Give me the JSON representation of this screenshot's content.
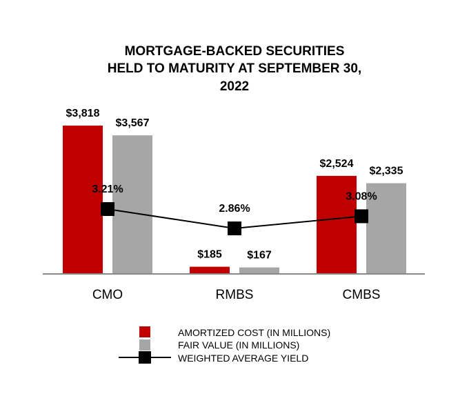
{
  "chart_data": {
    "type": "bar",
    "title_lines": [
      "MORTGAGE-BACKED SECURITIES",
      "HELD TO MATURITY AT SEPTEMBER 30,",
      "2022"
    ],
    "categories": [
      "CMO",
      "RMBS",
      "CMBS"
    ],
    "series": [
      {
        "name": "AMORTIZED COST (IN MILLIONS)",
        "values": [
          3818,
          185,
          2524
        ],
        "labels": [
          "$3,818",
          "$185",
          "$2,524"
        ],
        "color": "#c00000"
      },
      {
        "name": "FAIR VALUE (IN MILLIONS)",
        "values": [
          3567,
          167,
          2335
        ],
        "labels": [
          "$3,567",
          "$167",
          "$2,335"
        ],
        "color": "#a6a6a6"
      }
    ],
    "line_series": {
      "name": "WEIGHTED AVERAGE YIELD",
      "values": [
        3.21,
        2.86,
        3.08
      ],
      "labels": [
        "3.21%",
        "2.86%",
        "3.08%"
      ],
      "color": "#000000"
    },
    "ylim": [
      0,
      4000
    ],
    "grid": false,
    "legend_position": "bottom-center"
  }
}
